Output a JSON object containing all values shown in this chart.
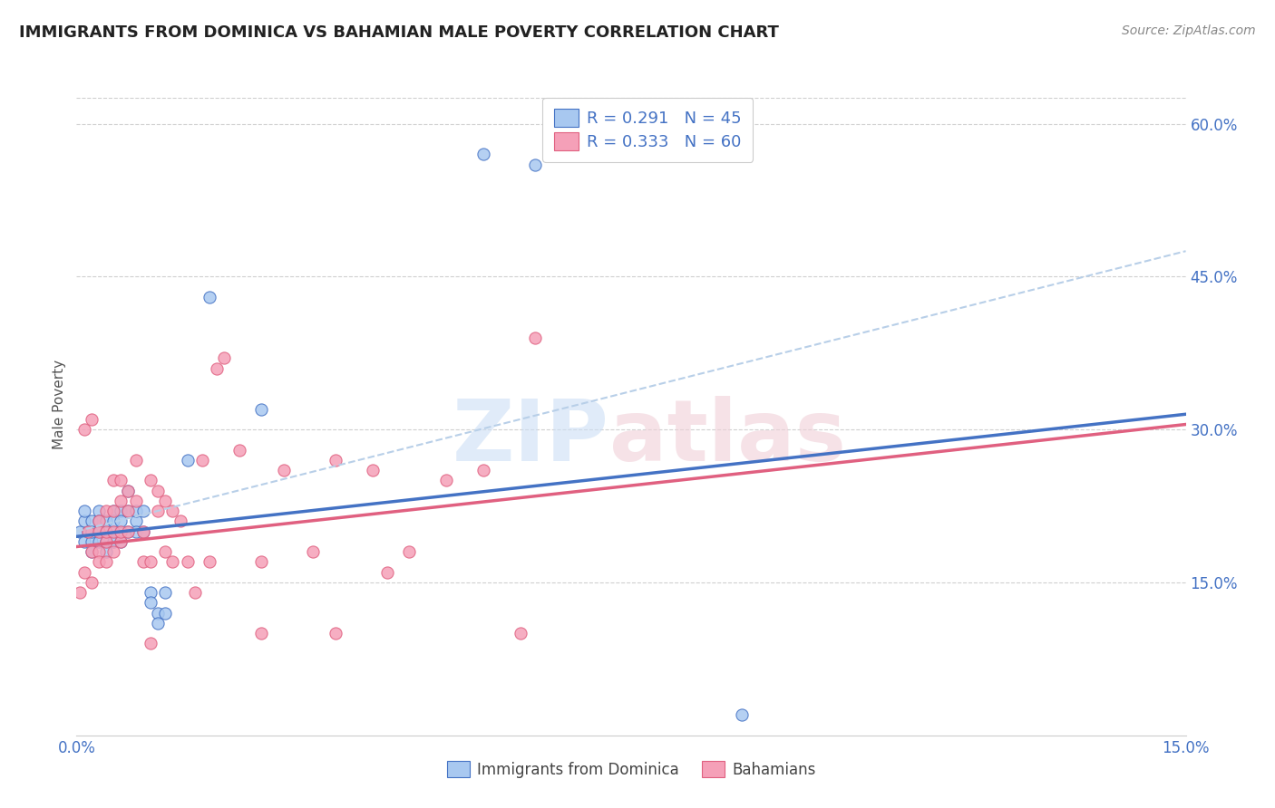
{
  "title": "IMMIGRANTS FROM DOMINICA VS BAHAMIAN MALE POVERTY CORRELATION CHART",
  "source": "Source: ZipAtlas.com",
  "ylabel": "Male Poverty",
  "xlim": [
    0.0,
    0.15
  ],
  "ylim": [
    0.0,
    0.65
  ],
  "xtick_vals": [
    0.0,
    0.03,
    0.06,
    0.09,
    0.12,
    0.15
  ],
  "xtick_labels": [
    "0.0%",
    "",
    "",
    "",
    "",
    "15.0%"
  ],
  "ytick_values_right": [
    0.6,
    0.45,
    0.3,
    0.15
  ],
  "ytick_labels_right": [
    "60.0%",
    "45.0%",
    "30.0%",
    "15.0%"
  ],
  "color_blue": "#a8c8f0",
  "color_pink": "#f5a0b8",
  "color_blue_line": "#4472c4",
  "color_pink_line": "#e06080",
  "color_blue_text": "#4472c4",
  "background": "#ffffff",
  "legend_line1": "R = 0.291   N = 45",
  "legend_line2": "R = 0.333   N = 60",
  "bottom_legend1": "Immigrants from Dominica",
  "bottom_legend2": "Bahamians",
  "trend_blue_x0": 0.0,
  "trend_blue_y0": 0.195,
  "trend_blue_x1": 0.15,
  "trend_blue_y1": 0.315,
  "trend_pink_x0": 0.0,
  "trend_pink_y0": 0.185,
  "trend_pink_x1": 0.15,
  "trend_pink_y1": 0.305,
  "trend_dash_x0": 0.0,
  "trend_dash_y0": 0.2,
  "trend_dash_x1": 0.15,
  "trend_dash_y1": 0.475,
  "scatter_blue_x": [
    0.0005,
    0.001,
    0.001,
    0.001,
    0.0015,
    0.002,
    0.002,
    0.002,
    0.002,
    0.003,
    0.003,
    0.003,
    0.003,
    0.004,
    0.004,
    0.004,
    0.004,
    0.005,
    0.005,
    0.005,
    0.005,
    0.006,
    0.006,
    0.006,
    0.006,
    0.007,
    0.007,
    0.007,
    0.008,
    0.008,
    0.008,
    0.009,
    0.009,
    0.01,
    0.01,
    0.011,
    0.011,
    0.012,
    0.012,
    0.015,
    0.018,
    0.025,
    0.055,
    0.062,
    0.09
  ],
  "scatter_blue_y": [
    0.2,
    0.19,
    0.21,
    0.22,
    0.2,
    0.19,
    0.21,
    0.2,
    0.18,
    0.2,
    0.22,
    0.19,
    0.21,
    0.2,
    0.19,
    0.21,
    0.18,
    0.2,
    0.22,
    0.19,
    0.21,
    0.2,
    0.22,
    0.19,
    0.21,
    0.22,
    0.24,
    0.2,
    0.21,
    0.2,
    0.22,
    0.2,
    0.22,
    0.14,
    0.13,
    0.12,
    0.11,
    0.12,
    0.14,
    0.27,
    0.43,
    0.32,
    0.57,
    0.56,
    0.02
  ],
  "scatter_pink_x": [
    0.0005,
    0.001,
    0.001,
    0.0015,
    0.002,
    0.002,
    0.002,
    0.003,
    0.003,
    0.003,
    0.003,
    0.004,
    0.004,
    0.004,
    0.004,
    0.005,
    0.005,
    0.005,
    0.005,
    0.006,
    0.006,
    0.006,
    0.006,
    0.007,
    0.007,
    0.007,
    0.008,
    0.008,
    0.009,
    0.009,
    0.01,
    0.01,
    0.011,
    0.011,
    0.012,
    0.012,
    0.013,
    0.013,
    0.014,
    0.015,
    0.016,
    0.017,
    0.018,
    0.019,
    0.02,
    0.022,
    0.025,
    0.028,
    0.032,
    0.035,
    0.04,
    0.042,
    0.045,
    0.05,
    0.055,
    0.062,
    0.035,
    0.01,
    0.025,
    0.06
  ],
  "scatter_pink_y": [
    0.14,
    0.16,
    0.3,
    0.2,
    0.15,
    0.31,
    0.18,
    0.18,
    0.21,
    0.2,
    0.17,
    0.19,
    0.22,
    0.17,
    0.2,
    0.18,
    0.22,
    0.25,
    0.2,
    0.19,
    0.23,
    0.2,
    0.25,
    0.22,
    0.24,
    0.2,
    0.27,
    0.23,
    0.17,
    0.2,
    0.17,
    0.25,
    0.22,
    0.24,
    0.18,
    0.23,
    0.17,
    0.22,
    0.21,
    0.17,
    0.14,
    0.27,
    0.17,
    0.36,
    0.37,
    0.28,
    0.17,
    0.26,
    0.18,
    0.27,
    0.26,
    0.16,
    0.18,
    0.25,
    0.26,
    0.39,
    0.1,
    0.09,
    0.1,
    0.1
  ]
}
